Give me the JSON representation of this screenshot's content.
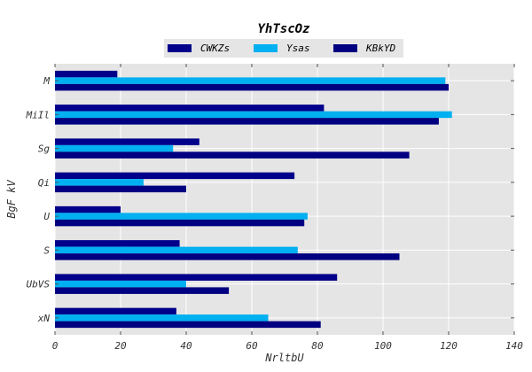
{
  "chart_data": {
    "type": "bar",
    "orientation": "horizontal",
    "title": "YhTscOz",
    "xlabel": "NrltbU",
    "ylabel": "BgF kV",
    "categories": [
      "M",
      "MiIl",
      "Sg",
      "Qi",
      "U",
      "S",
      "UbVS",
      "xN"
    ],
    "series": [
      {
        "name": "CWKZs",
        "color": "#00008b",
        "values": [
          19,
          82,
          44,
          73,
          20,
          38,
          86,
          37
        ]
      },
      {
        "name": "Ysas",
        "color": "#00b0f0",
        "values": [
          119,
          121,
          36,
          27,
          77,
          74,
          40,
          65
        ]
      },
      {
        "name": "KBkYD",
        "color": "#000080",
        "values": [
          120,
          117,
          108,
          40,
          76,
          105,
          53,
          81
        ]
      }
    ],
    "xlim": [
      0,
      140
    ],
    "xticks": [
      0,
      20,
      40,
      60,
      80,
      100,
      120,
      140
    ],
    "grid": true,
    "legend_position": "top-center",
    "background": "#e5e5e5"
  }
}
